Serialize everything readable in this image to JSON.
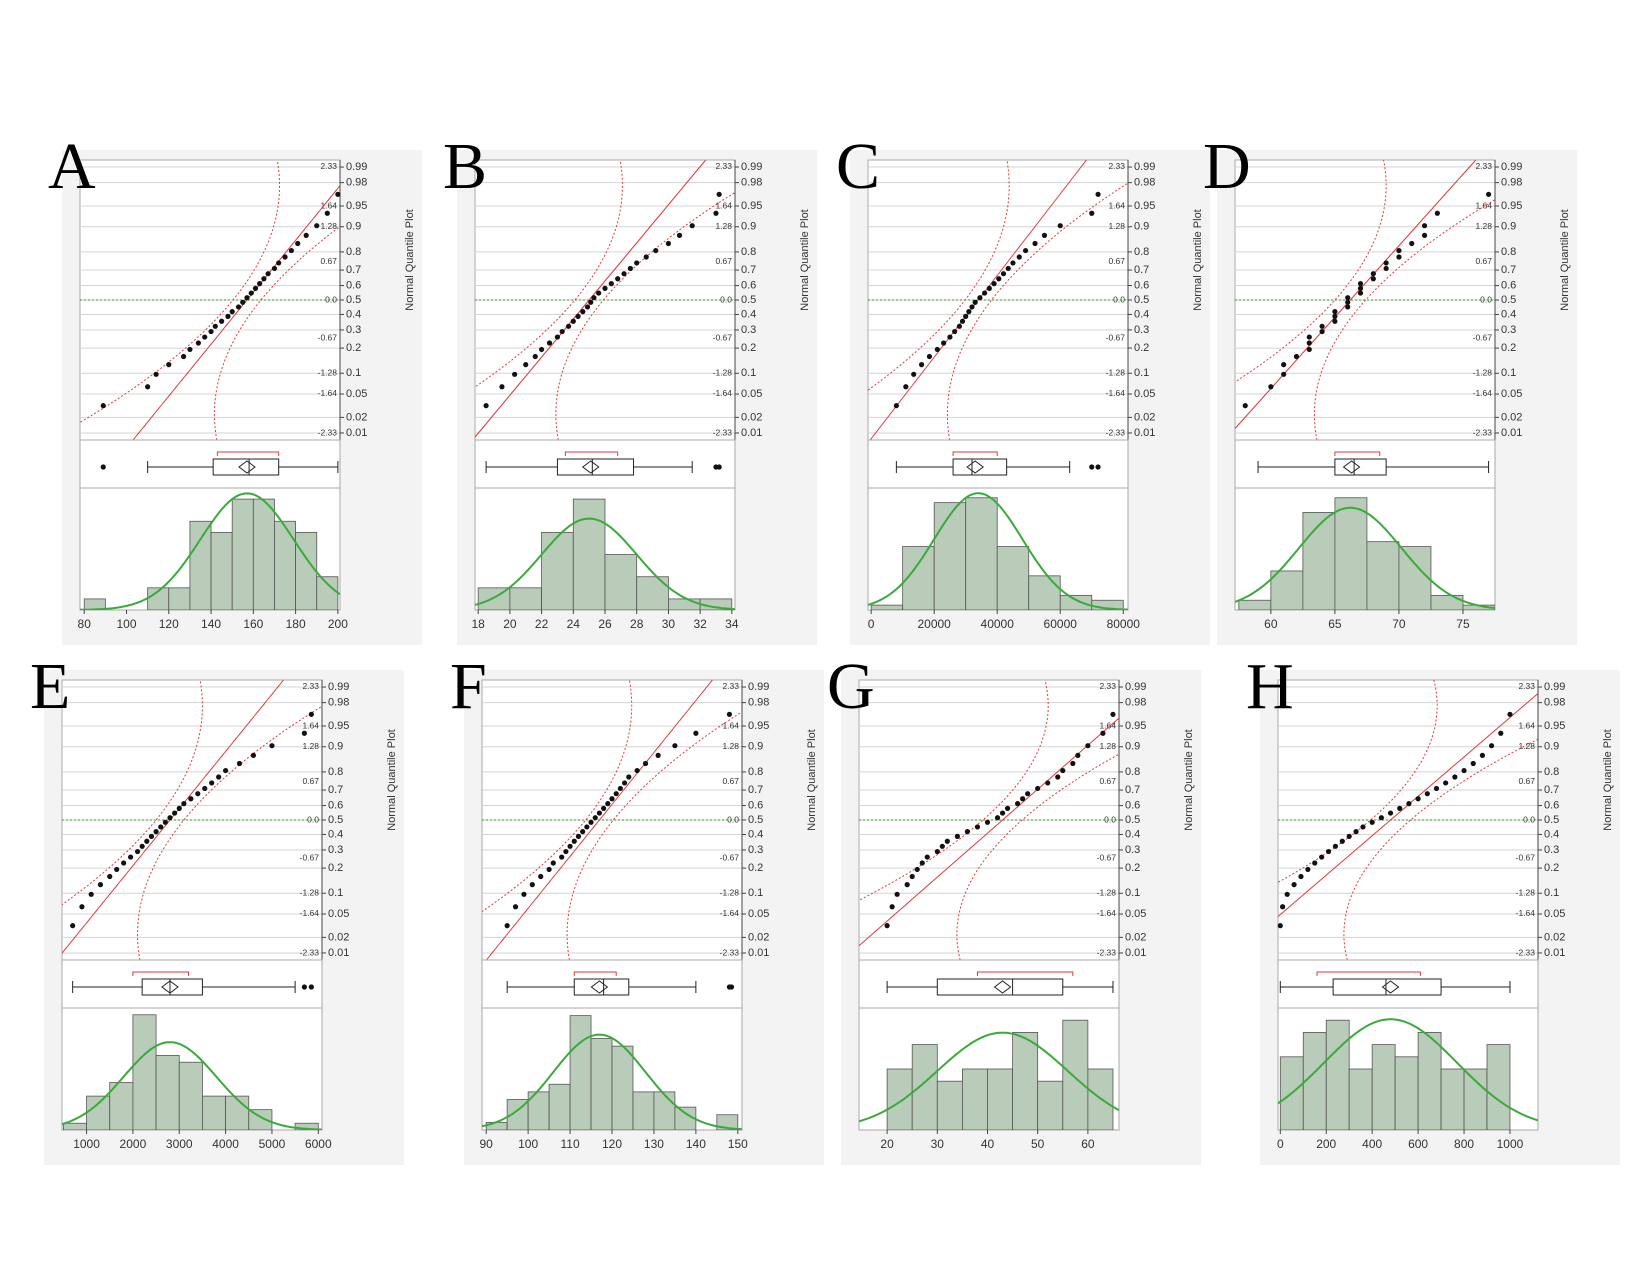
{
  "normal_quantile_axis": {
    "title": "Normal Quantile Plot",
    "zlim": [
      -2.45,
      2.45
    ],
    "probability_ticks": [
      0.01,
      0.02,
      0.05,
      0.1,
      0.2,
      0.3,
      0.4,
      0.5,
      0.6,
      0.7,
      0.8,
      0.9,
      0.95,
      0.98,
      0.99
    ],
    "z_ticks": [
      -2.33,
      -1.64,
      -1.28,
      -0.67,
      {
        "value": 0,
        "label": "0.0"
      },
      0.67,
      1.28,
      1.64,
      2.33
    ],
    "line_color": "#e0383f",
    "center_line_color": "#2e9e2e",
    "points_color": "#111111"
  },
  "chart_data": [
    {
      "type": "histogram",
      "label": "A",
      "color": "#b9ccb9",
      "curve_color": "#3aaa3a",
      "bins": [
        80,
        90,
        100,
        110,
        120,
        130,
        140,
        150,
        160,
        170,
        180,
        190,
        200
      ],
      "counts": [
        1,
        0,
        0,
        2,
        2,
        8,
        7,
        10,
        10,
        8,
        7,
        3
      ],
      "xlim": [
        78,
        201
      ],
      "xticks": [
        80,
        100,
        120,
        140,
        160,
        180,
        200
      ],
      "ylim": [
        0,
        11
      ],
      "normal_fit": {
        "mean": 157,
        "sd": 22
      },
      "box": {
        "min": 110,
        "q1": 141,
        "median": 158,
        "q3": 172,
        "max": 200,
        "mean": 157,
        "outliers": [
          89
        ],
        "shortest_half": [
          143,
          172
        ]
      },
      "quantile_points": [
        89,
        110,
        114,
        120,
        127,
        130,
        134,
        137,
        140,
        142,
        145,
        148,
        150,
        153,
        155,
        157,
        159,
        161,
        163,
        165,
        167,
        170,
        172,
        175,
        178,
        181,
        185,
        190,
        195,
        200
      ]
    },
    {
      "type": "histogram",
      "label": "B",
      "color": "#b9ccb9",
      "curve_color": "#3aaa3a",
      "bins": [
        18,
        20,
        22,
        24,
        26,
        28,
        30,
        32,
        34
      ],
      "counts": [
        2,
        2,
        7,
        10,
        5,
        3,
        1,
        1
      ],
      "xlim": [
        17.8,
        34.2
      ],
      "xticks": [
        18,
        20,
        22,
        24,
        26,
        28,
        30,
        32,
        34
      ],
      "ylim": [
        0,
        11
      ],
      "normal_fit": {
        "mean": 25,
        "sd": 3
      },
      "box": {
        "min": 18.5,
        "q1": 23,
        "median": 25.2,
        "q3": 27.8,
        "max": 31.5,
        "mean": 25.1,
        "outliers": [
          33,
          33.2
        ],
        "shortest_half": [
          23.5,
          26.8
        ]
      },
      "quantile_points": [
        18.5,
        19.5,
        20.3,
        21,
        21.6,
        22,
        22.5,
        23,
        23.3,
        23.7,
        24,
        24.3,
        24.6,
        24.9,
        25.1,
        25.3,
        25.6,
        26,
        26.4,
        26.8,
        27.2,
        27.6,
        28,
        28.6,
        29.2,
        30,
        30.7,
        31.5,
        33,
        33.2
      ]
    },
    {
      "type": "histogram",
      "label": "C",
      "color": "#b9ccb9",
      "curve_color": "#3aaa3a",
      "bins": [
        0,
        10000,
        20000,
        30000,
        40000,
        50000,
        60000,
        70000,
        80000
      ],
      "counts": [
        1,
        13,
        22,
        23,
        13,
        7,
        3,
        2
      ],
      "xlim": [
        -1000,
        81500
      ],
      "xticks": [
        0,
        20000,
        40000,
        60000,
        80000
      ],
      "ylim": [
        0,
        25
      ],
      "normal_fit": {
        "mean": 34000,
        "sd": 14000
      },
      "box": {
        "min": 8000,
        "q1": 26000,
        "median": 32000,
        "q3": 43000,
        "max": 63000,
        "mean": 33000,
        "outliers": [
          70000,
          72000
        ],
        "shortest_half": [
          26000,
          40000
        ]
      },
      "quantile_points": [
        8000,
        11000,
        13500,
        16000,
        18500,
        21000,
        23000,
        25000,
        26500,
        28000,
        29000,
        30000,
        31000,
        32000,
        33000,
        34500,
        36000,
        37500,
        39000,
        40500,
        42000,
        43500,
        45000,
        47000,
        49000,
        52000,
        55000,
        60000,
        70000,
        72000
      ]
    },
    {
      "type": "histogram",
      "label": "D",
      "color": "#b9ccb9",
      "curve_color": "#3aaa3a",
      "bins": [
        57.5,
        60,
        62.5,
        65,
        67.5,
        70,
        72.5,
        75,
        77.5
      ],
      "counts": [
        2,
        8,
        20,
        23,
        14,
        13,
        3,
        1
      ],
      "xlim": [
        57.2,
        77.5
      ],
      "xticks": [
        60,
        65,
        70,
        75
      ],
      "ylim": [
        0,
        25
      ],
      "normal_fit": {
        "mean": 66.2,
        "sd": 4
      },
      "box": {
        "min": 59,
        "q1": 65,
        "median": 66.5,
        "q3": 69,
        "max": 77,
        "mean": 66.3,
        "outliers": [],
        "shortest_half": [
          65,
          68.5
        ]
      },
      "quantile_points": [
        58,
        60,
        61,
        61,
        62,
        63,
        63,
        63,
        64,
        64,
        65,
        65,
        65,
        66,
        66,
        66,
        67,
        67,
        67,
        68,
        68,
        69,
        69,
        70,
        70,
        71,
        72,
        72,
        73,
        77
      ]
    },
    {
      "type": "histogram",
      "label": "E",
      "color": "#b9ccb9",
      "curve_color": "#3aaa3a",
      "bins": [
        500,
        1000,
        1500,
        2000,
        2500,
        3000,
        3500,
        4000,
        4500,
        5000,
        5500,
        6000
      ],
      "counts": [
        1,
        5,
        7,
        17,
        11,
        10,
        5,
        5,
        3,
        0,
        1
      ],
      "xlim": [
        470,
        6080
      ],
      "xticks": [
        1000,
        2000,
        3000,
        4000,
        5000,
        6000
      ],
      "ylim": [
        0,
        18
      ],
      "normal_fit": {
        "mean": 2800,
        "sd": 1000
      },
      "box": {
        "min": 700,
        "q1": 2200,
        "median": 2800,
        "q3": 3500,
        "max": 5500,
        "mean": 2800,
        "outliers": [
          5700,
          5850
        ],
        "shortest_half": [
          2000,
          3200
        ]
      },
      "quantile_points": [
        700,
        900,
        1100,
        1300,
        1500,
        1650,
        1800,
        1950,
        2100,
        2200,
        2300,
        2400,
        2500,
        2600,
        2700,
        2800,
        2900,
        3000,
        3100,
        3250,
        3400,
        3550,
        3700,
        3850,
        4000,
        4300,
        4600,
        5000,
        5700,
        5850
      ]
    },
    {
      "type": "histogram",
      "label": "F",
      "color": "#b9ccb9",
      "curve_color": "#3aaa3a",
      "bins": [
        90,
        95,
        100,
        105,
        110,
        115,
        120,
        125,
        130,
        135,
        140,
        145,
        150
      ],
      "counts": [
        1,
        4,
        5,
        6,
        15,
        12,
        11,
        5,
        5,
        3,
        0,
        2
      ],
      "xlim": [
        89,
        151
      ],
      "xticks": [
        90,
        100,
        110,
        120,
        130,
        140,
        150
      ],
      "ylim": [
        0,
        16
      ],
      "normal_fit": {
        "mean": 117,
        "sd": 11
      },
      "box": {
        "min": 95,
        "q1": 111,
        "median": 118,
        "q3": 124,
        "max": 140,
        "mean": 117,
        "outliers": [
          148,
          148.5
        ],
        "shortest_half": [
          111,
          121
        ]
      },
      "quantile_points": [
        95,
        97,
        99,
        101,
        103,
        105,
        106,
        108,
        109,
        110,
        111,
        112,
        113,
        114,
        115,
        116,
        117,
        118,
        119,
        120,
        121,
        122,
        123,
        124,
        126,
        128,
        131,
        135,
        140,
        148
      ]
    },
    {
      "type": "histogram",
      "label": "G",
      "color": "#b9ccb9",
      "curve_color": "#3aaa3a",
      "bins": [
        20,
        25,
        30,
        35,
        40,
        45,
        50,
        55,
        60,
        65
      ],
      "counts": [
        5,
        7,
        4,
        5,
        5,
        8,
        4,
        9,
        5
      ],
      "xlim": [
        14.4,
        66.2
      ],
      "xticks": [
        20,
        30,
        40,
        50,
        60
      ],
      "ylim": [
        0,
        10
      ],
      "normal_fit": {
        "mean": 43,
        "sd": 13
      },
      "box": {
        "min": 20,
        "q1": 30,
        "median": 45,
        "q3": 55,
        "max": 65,
        "mean": 43,
        "outliers": [],
        "shortest_half": [
          38,
          57
        ]
      },
      "quantile_points": [
        20,
        21,
        22,
        24,
        25,
        26,
        27,
        28,
        30,
        31,
        32,
        34,
        36,
        38,
        40,
        42,
        43,
        44,
        46,
        47,
        48,
        50,
        52,
        54,
        55,
        57,
        58,
        60,
        63,
        65
      ]
    },
    {
      "type": "histogram",
      "label": "H",
      "color": "#b9ccb9",
      "curve_color": "#3aaa3a",
      "bins": [
        0,
        100,
        200,
        300,
        400,
        500,
        600,
        700,
        800,
        900,
        1000
      ],
      "counts": [
        6,
        8,
        9,
        5,
        7,
        6,
        8,
        5,
        5,
        7
      ],
      "xlim": [
        -10,
        1122
      ],
      "xticks": [
        0,
        200,
        400,
        600,
        800,
        1000
      ],
      "ylim": [
        0,
        10
      ],
      "normal_fit": {
        "mean": 480,
        "sd": 290
      },
      "box": {
        "min": 0,
        "q1": 230,
        "median": 460,
        "q3": 700,
        "max": 1000,
        "mean": 480,
        "outliers": [],
        "shortest_half": [
          160,
          610
        ]
      },
      "quantile_points": [
        0,
        10,
        30,
        60,
        90,
        120,
        150,
        180,
        210,
        240,
        270,
        300,
        330,
        360,
        400,
        440,
        480,
        520,
        560,
        600,
        640,
        680,
        720,
        760,
        800,
        840,
        880,
        920,
        960,
        1000
      ]
    }
  ]
}
